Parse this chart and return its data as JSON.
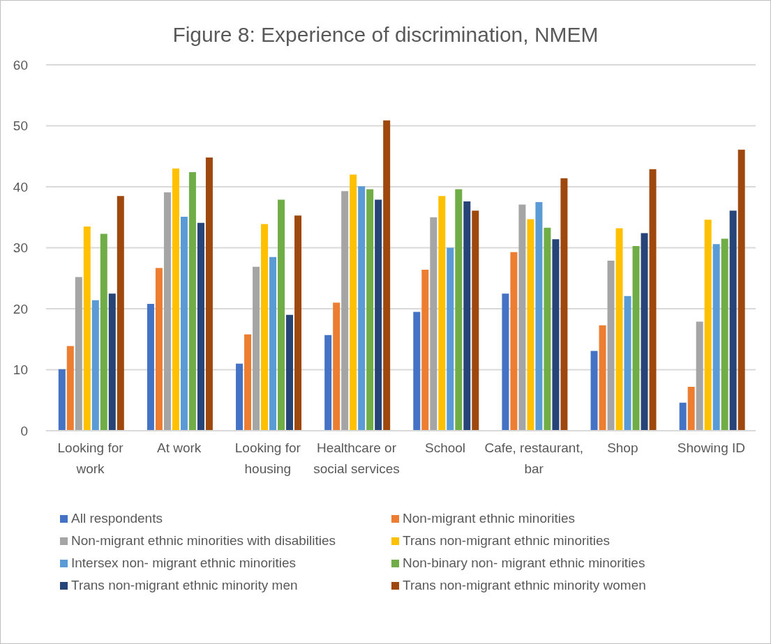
{
  "chart_data": {
    "type": "bar",
    "title": "Figure 8: Experience of discrimination, NMEM",
    "categories": [
      "Looking for work",
      "At work",
      "Looking for housing",
      "Healthcare or social services",
      "School",
      "Cafe, restaurant, bar",
      "Shop",
      "Showing ID"
    ],
    "series": [
      {
        "name": "All respondents",
        "color": "#4472c4",
        "values": [
          10.1,
          20.8,
          11.0,
          15.7,
          19.5,
          22.5,
          13.1,
          4.6
        ]
      },
      {
        "name": "Non-migrant ethnic minorities",
        "color": "#ed7d31",
        "values": [
          13.9,
          26.7,
          15.8,
          21.0,
          26.4,
          29.3,
          17.3,
          7.2
        ]
      },
      {
        "name": "Non-migrant ethnic minorities with disabilities",
        "color": "#a5a5a5",
        "values": [
          25.2,
          39.1,
          26.9,
          39.3,
          35.0,
          37.1,
          27.9,
          17.9
        ]
      },
      {
        "name": "Trans non-migrant ethnic minorities",
        "color": "#ffc000",
        "values": [
          33.5,
          43.0,
          33.9,
          42.0,
          38.5,
          34.7,
          33.2,
          34.6
        ]
      },
      {
        "name": "Intersex non- migrant ethnic minorities",
        "color": "#5b9bd5",
        "values": [
          21.4,
          35.1,
          28.5,
          40.1,
          30.0,
          37.5,
          22.1,
          30.6
        ]
      },
      {
        "name": "Non-binary non- migrant ethnic minorities",
        "color": "#70ad47",
        "values": [
          32.3,
          42.4,
          37.9,
          39.6,
          39.6,
          33.3,
          30.3,
          31.5
        ]
      },
      {
        "name": "Trans non-migrant ethnic minority men",
        "color": "#264478",
        "values": [
          22.5,
          34.1,
          19.0,
          37.9,
          37.6,
          31.4,
          32.4,
          36.1
        ]
      },
      {
        "name": "Trans non-migrant ethnic minority women",
        "color": "#9e480e",
        "values": [
          38.5,
          44.8,
          35.3,
          50.9,
          36.1,
          41.4,
          42.9,
          46.1
        ]
      }
    ],
    "ylim": [
      0,
      60
    ],
    "yticks": [
      0,
      10,
      20,
      30,
      40,
      50,
      60
    ],
    "grid": "y",
    "legend": "bottom"
  }
}
